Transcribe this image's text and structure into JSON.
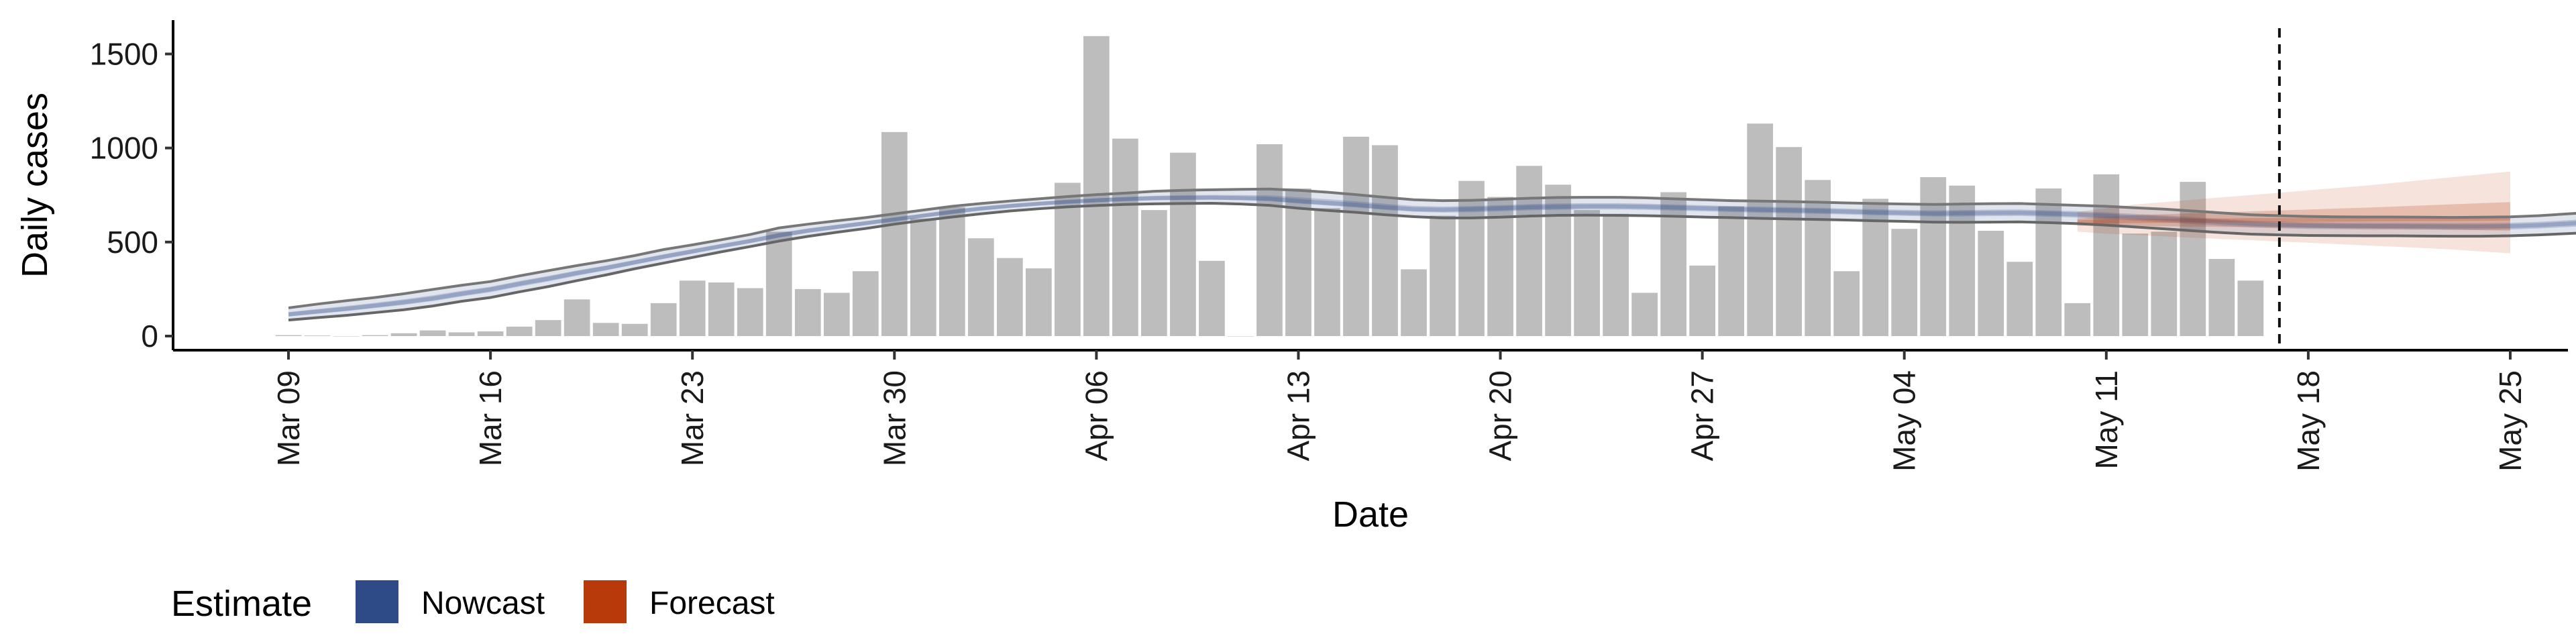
{
  "chart_data": {
    "type": "bar",
    "xlabel": "Date",
    "ylabel": "Daily cases",
    "ylim": [
      -75,
      1680
    ],
    "yticks": [
      0,
      500,
      1000,
      1500
    ],
    "x_range": [
      "2020-03-05",
      "2020-05-27"
    ],
    "x_ticks": [
      {
        "date": "2020-03-09",
        "label": "Mar 09"
      },
      {
        "date": "2020-03-16",
        "label": "Mar 16"
      },
      {
        "date": "2020-03-23",
        "label": "Mar 23"
      },
      {
        "date": "2020-03-30",
        "label": "Mar 30"
      },
      {
        "date": "2020-04-06",
        "label": "Apr 06"
      },
      {
        "date": "2020-04-13",
        "label": "Apr 13"
      },
      {
        "date": "2020-04-20",
        "label": "Apr 20"
      },
      {
        "date": "2020-04-27",
        "label": "Apr 27"
      },
      {
        "date": "2020-05-04",
        "label": "May 04"
      },
      {
        "date": "2020-05-11",
        "label": "May 11"
      },
      {
        "date": "2020-05-18",
        "label": "May 18"
      },
      {
        "date": "2020-05-25",
        "label": "May 25"
      }
    ],
    "grid": false,
    "reference_line_date": "2020-05-17",
    "bars": {
      "start_date": "2020-03-09",
      "color": "#bdbdbd",
      "values": [
        5,
        3,
        0,
        5,
        15,
        30,
        20,
        25,
        50,
        85,
        195,
        70,
        65,
        175,
        295,
        285,
        255,
        555,
        250,
        230,
        345,
        1085,
        625,
        685,
        520,
        415,
        360,
        815,
        1595,
        1050,
        670,
        975,
        400,
        0,
        1020,
        785,
        680,
        1060,
        1015,
        355,
        640,
        825,
        740,
        905,
        805,
        670,
        650,
        230,
        765,
        375,
        690,
        1130,
        1005,
        830,
        345,
        730,
        570,
        845,
        800,
        560,
        395,
        785,
        175,
        860,
        545,
        555,
        820,
        410,
        295
      ]
    },
    "nowcast": {
      "start_date": "2020-03-09",
      "upper": [
        150,
        170,
        188,
        205,
        225,
        248,
        270,
        290,
        320,
        348,
        375,
        400,
        428,
        460,
        485,
        512,
        540,
        575,
        595,
        613,
        630,
        650,
        670,
        690,
        705,
        718,
        730,
        742,
        752,
        760,
        770,
        775,
        778,
        780,
        782,
        775,
        765,
        752,
        738,
        725,
        720,
        722,
        727,
        733,
        737,
        738,
        738,
        735,
        730,
        725,
        720,
        718,
        715,
        712,
        708,
        705,
        702,
        700,
        702,
        704,
        705,
        700,
        695,
        690,
        682,
        675,
        665,
        655,
        645,
        640,
        636,
        634,
        633,
        633,
        632,
        631,
        632,
        634,
        640,
        650,
        660,
        672,
        688
      ],
      "median": [
        115,
        130,
        145,
        162,
        180,
        200,
        225,
        248,
        278,
        305,
        335,
        362,
        392,
        422,
        450,
        478,
        505,
        535,
        560,
        580,
        600,
        620,
        640,
        660,
        678,
        692,
        704,
        714,
        722,
        728,
        733,
        735,
        736,
        734,
        730,
        718,
        708,
        698,
        685,
        675,
        672,
        675,
        680,
        685,
        688,
        690,
        690,
        688,
        684,
        680,
        676,
        672,
        669,
        666,
        662,
        658,
        655,
        652,
        653,
        655,
        656,
        652,
        647,
        640,
        632,
        625,
        615,
        605,
        597,
        592,
        588,
        586,
        585,
        585,
        584,
        583,
        583,
        585,
        590,
        598,
        607,
        616,
        628
      ],
      "lower": [
        85,
        98,
        110,
        125,
        140,
        160,
        185,
        205,
        235,
        263,
        295,
        325,
        358,
        388,
        418,
        448,
        476,
        505,
        530,
        552,
        572,
        595,
        615,
        633,
        650,
        665,
        677,
        687,
        694,
        700,
        703,
        705,
        706,
        702,
        695,
        680,
        668,
        658,
        645,
        635,
        628,
        628,
        632,
        638,
        642,
        643,
        642,
        640,
        637,
        633,
        630,
        626,
        623,
        620,
        617,
        613,
        610,
        606,
        605,
        606,
        607,
        603,
        598,
        590,
        580,
        570,
        560,
        550,
        542,
        538,
        535,
        534,
        533,
        533,
        532,
        531,
        531,
        533,
        538,
        545,
        552,
        560,
        570
      ],
      "color": "#2e4a87"
    },
    "forecast": {
      "start_date": "2020-05-10",
      "upper": [
        660,
        680,
        700,
        712,
        725,
        738,
        750,
        762,
        775,
        788,
        800,
        815,
        830,
        845,
        860,
        875
      ],
      "median": [
        605,
        610,
        612,
        613,
        614,
        615,
        616,
        617,
        618,
        619,
        620,
        621,
        622,
        623,
        624,
        625
      ],
      "lower": [
        555,
        545,
        538,
        530,
        523,
        516,
        510,
        503,
        496,
        489,
        482,
        475,
        468,
        460,
        450,
        440
      ],
      "color": "#b83a0a"
    },
    "legend": {
      "title": "Estimate",
      "position": "bottom-left",
      "items": [
        {
          "label": "Nowcast",
          "color": "#2e4a87"
        },
        {
          "label": "Forecast",
          "color": "#b83a0a"
        }
      ]
    }
  }
}
